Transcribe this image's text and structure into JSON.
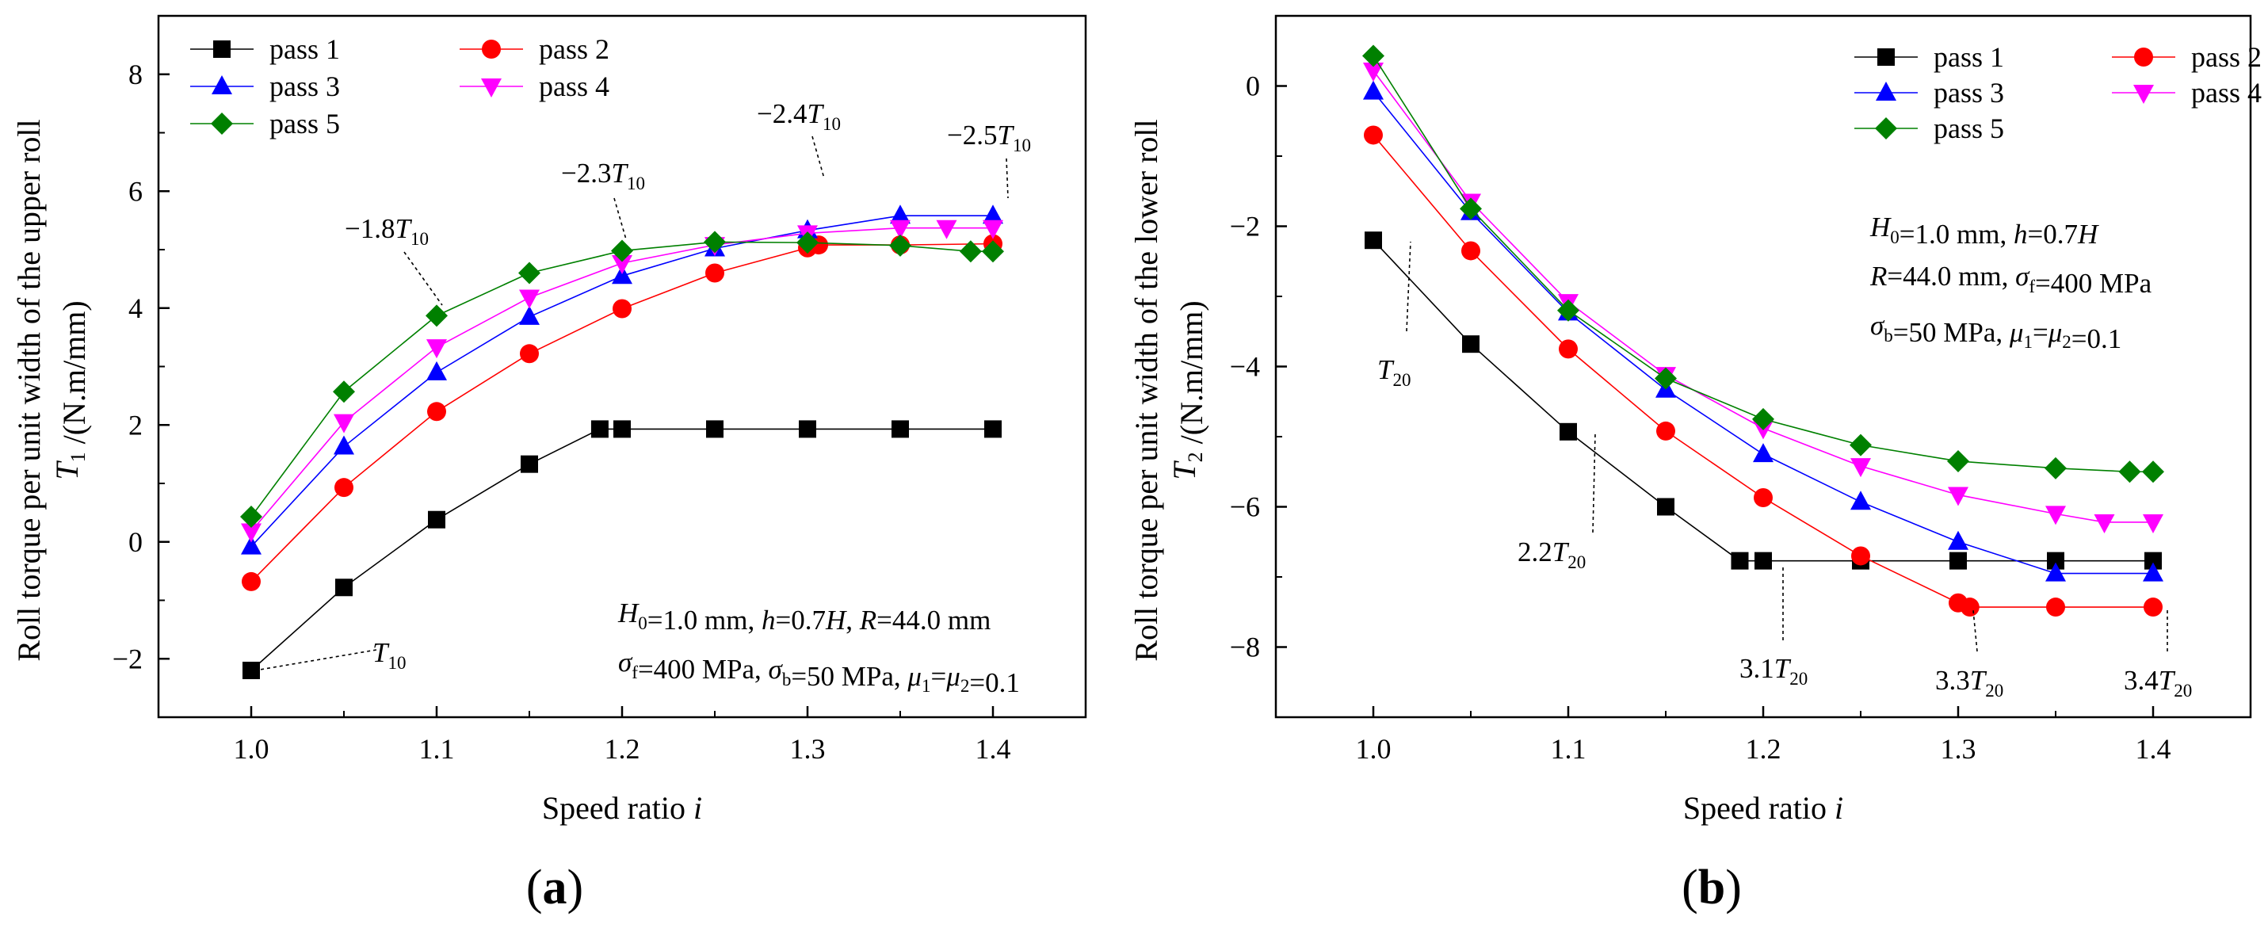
{
  "chart_data": [
    {
      "type": "line",
      "panel_label": "(a)",
      "panel_letter": "a",
      "x": [
        1.0,
        1.05,
        1.1,
        1.15,
        1.2,
        1.25,
        1.3,
        1.35,
        1.4
      ],
      "xlim": [
        0.95,
        1.45
      ],
      "xticks": [
        "1.0",
        "1.1",
        "1.2",
        "1.3",
        "1.4"
      ],
      "xtick_values": [
        1.0,
        1.1,
        1.2,
        1.3,
        1.4
      ],
      "ylim": [
        -3,
        9
      ],
      "yticks": [
        "−2",
        "0",
        "2",
        "4",
        "6",
        "8"
      ],
      "ytick_values": [
        -2,
        0,
        2,
        4,
        6,
        8
      ],
      "xlabel": "Speed ratio i",
      "ylabel": "Roll torque per unit width of the upper roll",
      "ylabel2": "T1 /(N.m/mm)",
      "legend": "top-left",
      "series": [
        {
          "name": "pass 1",
          "color": "#000000",
          "marker": "square",
          "x": [
            1.0,
            1.05,
            1.1,
            1.15,
            1.188,
            1.2,
            1.25,
            1.3,
            1.35,
            1.4
          ],
          "y": [
            -2.2,
            -0.78,
            0.38,
            1.33,
            1.93,
            1.93,
            1.93,
            1.93,
            1.93,
            1.93
          ]
        },
        {
          "name": "pass 2",
          "color": "#ff0000",
          "marker": "circle",
          "x": [
            1.0,
            1.05,
            1.1,
            1.15,
            1.2,
            1.25,
            1.3,
            1.306,
            1.35,
            1.4
          ],
          "y": [
            -0.68,
            0.93,
            2.23,
            3.22,
            3.99,
            4.6,
            5.03,
            5.08,
            5.08,
            5.1
          ]
        },
        {
          "name": "pass 3",
          "color": "#0000ff",
          "marker": "triangle-up",
          "x": [
            1.0,
            1.05,
            1.1,
            1.15,
            1.2,
            1.25,
            1.3,
            1.35,
            1.4
          ],
          "y": [
            -0.08,
            1.63,
            2.9,
            3.85,
            4.55,
            5.02,
            5.33,
            5.58,
            5.58
          ]
        },
        {
          "name": "pass 4",
          "color": "#ff00ff",
          "marker": "triangle-down",
          "x": [
            1.0,
            1.05,
            1.1,
            1.15,
            1.2,
            1.25,
            1.3,
            1.35,
            1.375,
            1.4
          ],
          "y": [
            0.18,
            2.05,
            3.33,
            4.18,
            4.77,
            5.08,
            5.28,
            5.37,
            5.37,
            5.37
          ]
        },
        {
          "name": "pass 5",
          "color": "#008000",
          "marker": "diamond",
          "x": [
            1.0,
            1.05,
            1.1,
            1.15,
            1.2,
            1.25,
            1.3,
            1.35,
            1.388,
            1.4
          ],
          "y": [
            0.43,
            2.57,
            3.87,
            4.6,
            4.98,
            5.13,
            5.12,
            5.07,
            4.97,
            4.97
          ]
        }
      ],
      "param_lines": [
        [
          "H0",
          "=1.0 mm, ",
          "h",
          "=0.7",
          "H",
          ", ",
          "R",
          "=44.0 mm"
        ],
        [
          "σf",
          "=400 MPa, ",
          "σb",
          "=50 MPa, ",
          "μ1=μ2",
          "=0.1"
        ]
      ],
      "annotations": [
        {
          "text": "T10",
          "x": 1.0,
          "y": -2.2
        },
        {
          "text": "−1.8T10",
          "x": 1.1,
          "y": 3.87
        },
        {
          "text": "−2.3T10",
          "x": 1.2,
          "y": 4.98
        },
        {
          "text": "−2.4T10",
          "x": 1.3,
          "y": 5.33
        },
        {
          "text": "−2.5T10",
          "x": 1.4,
          "y": 5.58
        }
      ]
    },
    {
      "type": "line",
      "panel_label": "(b)",
      "panel_letter": "b",
      "x": [
        1.0,
        1.05,
        1.1,
        1.15,
        1.2,
        1.25,
        1.3,
        1.35,
        1.4
      ],
      "xlim": [
        0.95,
        1.45
      ],
      "xticks": [
        "1.0",
        "1.1",
        "1.2",
        "1.3",
        "1.4"
      ],
      "xtick_values": [
        1.0,
        1.1,
        1.2,
        1.3,
        1.4
      ],
      "ylim": [
        -9,
        1
      ],
      "yticks": [
        "−8",
        "−6",
        "−4",
        "−2",
        "0"
      ],
      "ytick_values": [
        -8,
        -6,
        -4,
        -2,
        0
      ],
      "xlabel": "Speed ratio i",
      "ylabel": "Roll torque per unit width of the lower roll",
      "ylabel2": "T2 /(N.m/mm)",
      "legend": "top-right",
      "series": [
        {
          "name": "pass 1",
          "color": "#000000",
          "marker": "square",
          "x": [
            1.0,
            1.05,
            1.1,
            1.15,
            1.188,
            1.2,
            1.25,
            1.3,
            1.35,
            1.4
          ],
          "y": [
            -2.2,
            -3.68,
            -4.93,
            -6.0,
            -6.77,
            -6.77,
            -6.77,
            -6.77,
            -6.77,
            -6.77
          ]
        },
        {
          "name": "pass 2",
          "color": "#ff0000",
          "marker": "circle",
          "x": [
            1.0,
            1.05,
            1.1,
            1.15,
            1.2,
            1.25,
            1.3,
            1.306,
            1.35,
            1.4
          ],
          "y": [
            -0.7,
            -2.35,
            -3.75,
            -4.92,
            -5.87,
            -6.7,
            -7.37,
            -7.43,
            -7.43,
            -7.43
          ]
        },
        {
          "name": "pass 3",
          "color": "#0000ff",
          "marker": "triangle-up",
          "x": [
            1.0,
            1.05,
            1.1,
            1.15,
            1.2,
            1.25,
            1.3,
            1.35,
            1.4
          ],
          "y": [
            -0.08,
            -1.8,
            -3.23,
            -4.33,
            -5.25,
            -5.93,
            -6.5,
            -6.95,
            -6.95
          ]
        },
        {
          "name": "pass 4",
          "color": "#ff00ff",
          "marker": "triangle-down",
          "x": [
            1.0,
            1.05,
            1.1,
            1.15,
            1.2,
            1.25,
            1.3,
            1.35,
            1.375,
            1.4
          ],
          "y": [
            0.22,
            -1.65,
            -3.08,
            -4.12,
            -4.88,
            -5.42,
            -5.83,
            -6.1,
            -6.22,
            -6.22
          ]
        },
        {
          "name": "pass 5",
          "color": "#008000",
          "marker": "diamond",
          "x": [
            1.0,
            1.05,
            1.1,
            1.15,
            1.2,
            1.25,
            1.3,
            1.35,
            1.388,
            1.4
          ],
          "y": [
            0.43,
            -1.75,
            -3.2,
            -4.17,
            -4.75,
            -5.12,
            -5.35,
            -5.45,
            -5.5,
            -5.5
          ]
        }
      ],
      "param_lines": [
        [
          "H0",
          "=1.0 mm, ",
          "h",
          "=0.7",
          "H"
        ],
        [
          "R",
          "=44.0 mm, ",
          "σf",
          "=400 MPa"
        ],
        [
          "σb",
          "=50 MPa, ",
          "μ1=μ2",
          "=0.1"
        ]
      ],
      "annotations": [
        {
          "text": "T20",
          "x": 1.0,
          "y": -2.2
        },
        {
          "text": "2.2T20",
          "x": 1.1,
          "y": -4.93
        },
        {
          "text": "3.1T20",
          "x": 1.2,
          "y": -6.77
        },
        {
          "text": "3.3T20",
          "x": 1.3,
          "y": -7.37
        },
        {
          "text": "3.4T20",
          "x": 1.4,
          "y": -7.43
        }
      ]
    }
  ]
}
